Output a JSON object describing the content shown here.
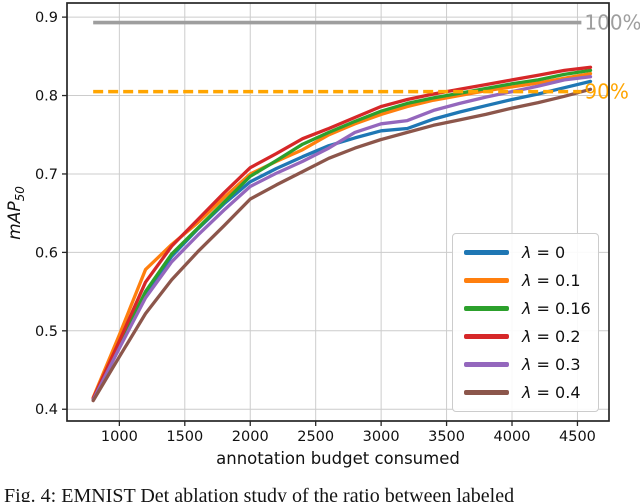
{
  "figure": {
    "caption": "Fig. 4: EMNIST Det ablation study of the ratio between labeled"
  },
  "chart_data": {
    "type": "line",
    "title": "",
    "xlabel": "annotation budget consumed",
    "ylabel": "mAP",
    "ylabel_subscript": "50",
    "xlim": [
      600,
      4741
    ],
    "ylim": [
      0.385,
      0.918
    ],
    "xticks": [
      1000,
      1500,
      2000,
      2500,
      3000,
      3500,
      4000,
      4500
    ],
    "yticks": [
      0.4,
      0.5,
      0.6,
      0.7,
      0.8,
      0.9
    ],
    "grid": true,
    "grid_color": "#cccccc",
    "spine_color": "#262626",
    "legend_position": "lower right",
    "x": [
      800,
      1000,
      1200,
      1400,
      1600,
      1800,
      2000,
      2200,
      2400,
      2600,
      2800,
      3000,
      3200,
      3400,
      3600,
      3800,
      4000,
      4200,
      4400,
      4600
    ],
    "series": [
      {
        "name": "λ = 0",
        "color": "#1f77b4",
        "values": [
          0.413,
          0.482,
          0.548,
          0.595,
          0.63,
          0.662,
          0.69,
          0.707,
          0.722,
          0.736,
          0.746,
          0.755,
          0.758,
          0.77,
          0.779,
          0.787,
          0.795,
          0.802,
          0.81,
          0.818
        ]
      },
      {
        "name": "λ = 0.1",
        "color": "#ff7f0e",
        "values": [
          0.415,
          0.495,
          0.578,
          0.61,
          0.638,
          0.67,
          0.7,
          0.716,
          0.731,
          0.75,
          0.764,
          0.776,
          0.786,
          0.794,
          0.8,
          0.806,
          0.811,
          0.816,
          0.822,
          0.828
        ]
      },
      {
        "name": "λ = 0.16",
        "color": "#2ca02c",
        "values": [
          0.413,
          0.483,
          0.55,
          0.598,
          0.631,
          0.664,
          0.697,
          0.717,
          0.738,
          0.753,
          0.767,
          0.78,
          0.79,
          0.797,
          0.803,
          0.809,
          0.815,
          0.82,
          0.827,
          0.832
        ]
      },
      {
        "name": "λ = 0.2",
        "color": "#d62728",
        "values": [
          0.414,
          0.487,
          0.562,
          0.608,
          0.642,
          0.676,
          0.708,
          0.726,
          0.745,
          0.758,
          0.772,
          0.786,
          0.795,
          0.802,
          0.808,
          0.814,
          0.82,
          0.826,
          0.832,
          0.836
        ]
      },
      {
        "name": "λ = 0.3",
        "color": "#9467bd",
        "values": [
          0.412,
          0.478,
          0.542,
          0.588,
          0.622,
          0.654,
          0.684,
          0.701,
          0.716,
          0.733,
          0.753,
          0.764,
          0.768,
          0.781,
          0.79,
          0.798,
          0.805,
          0.812,
          0.82,
          0.824
        ]
      },
      {
        "name": "λ = 0.4",
        "color": "#8c564b",
        "values": [
          0.411,
          0.467,
          0.522,
          0.565,
          0.601,
          0.634,
          0.668,
          0.686,
          0.703,
          0.72,
          0.733,
          0.744,
          0.753,
          0.762,
          0.769,
          0.776,
          0.784,
          0.791,
          0.799,
          0.808
        ]
      }
    ],
    "reference_lines": [
      {
        "label": "100%",
        "y": 0.893,
        "style": "solid",
        "color": "#9e9e9e",
        "x_start": 800,
        "x_end": 4530
      },
      {
        "label": "90%",
        "y": 0.805,
        "style": "dashed",
        "color": "#ffa500",
        "x_start": 800,
        "x_end": 4530
      }
    ]
  }
}
